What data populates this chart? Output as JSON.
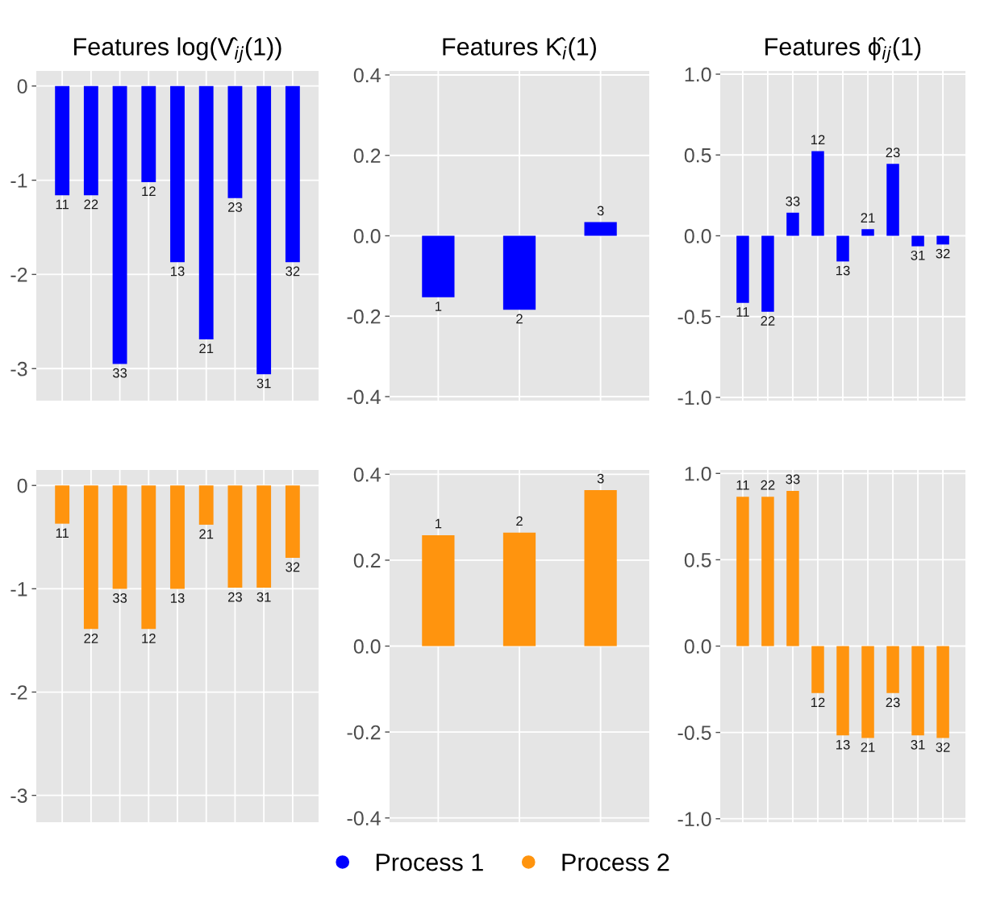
{
  "chart_data": [
    {
      "type": "bar",
      "title": "Features log(V̂$_{ij}$(1))",
      "categories": [
        "11",
        "22",
        "33",
        "12",
        "13",
        "21",
        "23",
        "31",
        "32"
      ],
      "series": [
        {
          "name": "Process 1",
          "color": "#0000ff",
          "values": [
            -1.16,
            -1.16,
            -2.95,
            -1.02,
            -1.87,
            -2.69,
            -1.19,
            -3.06,
            -1.87
          ]
        }
      ],
      "ylim": [
        -3.34,
        0.16
      ],
      "yticks": [
        0,
        -1,
        -2,
        -3
      ],
      "tick_labels": "y",
      "grid": true,
      "legend": "bottom"
    },
    {
      "type": "bar",
      "title": "Features K̂$_{i}$(1)",
      "categories": [
        "1",
        "2",
        "3"
      ],
      "series": [
        {
          "name": "Process 1",
          "color": "#0000ff",
          "values": [
            -0.153,
            -0.184,
            0.034
          ]
        }
      ],
      "ylim": [
        -0.41,
        0.41
      ],
      "yticks": [
        {
          "value": 0.4,
          "label": "0.4"
        },
        {
          "value": 0.2,
          "label": "0.2"
        },
        {
          "value": 0,
          "label": "0.0"
        },
        {
          "value": -0.2,
          "label": "-0.2"
        },
        {
          "value": -0.4,
          "label": "-0.4"
        }
      ],
      "tick_labels": "y",
      "grid": true,
      "legend": "bottom"
    },
    {
      "type": "bar",
      "title": "Features ϕ̂$_{ij}$(1)",
      "categories": [
        "11",
        "22",
        "33",
        "12",
        "13",
        "21",
        "23",
        "31",
        "32"
      ],
      "series": [
        {
          "name": "Process 1",
          "color": "#0000ff",
          "values": [
            -0.415,
            -0.47,
            0.143,
            0.524,
            -0.159,
            0.041,
            0.445,
            -0.065,
            -0.054
          ]
        }
      ],
      "ylim": [
        -1.02,
        1.02
      ],
      "yticks": [
        {
          "value": 1,
          "label": "1.0"
        },
        {
          "value": 0.5,
          "label": "0.5"
        },
        {
          "value": 0,
          "label": "0.0"
        },
        {
          "value": -0.5,
          "label": "-0.5"
        },
        {
          "value": -1,
          "label": "-1.0"
        }
      ],
      "tick_labels": "y",
      "grid": true,
      "legend": "bottom"
    },
    {
      "type": "bar",
      "categories": [
        "11",
        "22",
        "33",
        "12",
        "13",
        "21",
        "23",
        "31",
        "32"
      ],
      "series": [
        {
          "name": "Process 2",
          "color": "#ff940e",
          "values": [
            -0.37,
            -1.39,
            -1.0,
            -1.39,
            -1.0,
            -0.38,
            -0.99,
            -0.99,
            -0.7
          ]
        }
      ],
      "ylim": [
        -3.26,
        0.15
      ],
      "yticks": [
        0,
        -1,
        -2,
        -3
      ],
      "tick_labels": "y",
      "grid": true,
      "legend": "bottom"
    },
    {
      "type": "bar",
      "categories": [
        "1",
        "2",
        "3"
      ],
      "series": [
        {
          "name": "Process 2",
          "color": "#ff940e",
          "values": [
            0.258,
            0.264,
            0.363
          ]
        }
      ],
      "ylim": [
        -0.41,
        0.41
      ],
      "yticks": [
        {
          "value": 0.4,
          "label": "0.4"
        },
        {
          "value": 0.2,
          "label": "0.2"
        },
        {
          "value": 0,
          "label": "0.0"
        },
        {
          "value": -0.2,
          "label": "-0.2"
        },
        {
          "value": -0.4,
          "label": "-0.4"
        }
      ],
      "tick_labels": "y",
      "grid": true,
      "legend": "bottom"
    },
    {
      "type": "bar",
      "categories": [
        "11",
        "22",
        "33",
        "12",
        "13",
        "21",
        "23",
        "31",
        "32"
      ],
      "series": [
        {
          "name": "Process 2",
          "color": "#ff940e",
          "values": [
            0.865,
            0.865,
            0.899,
            -0.272,
            -0.517,
            -0.532,
            -0.272,
            -0.517,
            -0.532
          ]
        }
      ],
      "ylim": [
        -1.02,
        1.02
      ],
      "yticks": [
        {
          "value": 1,
          "label": "1.0"
        },
        {
          "value": 0.5,
          "label": "0.5"
        },
        {
          "value": 0,
          "label": "0.0"
        },
        {
          "value": -0.5,
          "label": "-0.5"
        },
        {
          "value": -1,
          "label": "-1.0"
        }
      ],
      "tick_labels": "y",
      "grid": true,
      "legend": "bottom"
    }
  ]
}
